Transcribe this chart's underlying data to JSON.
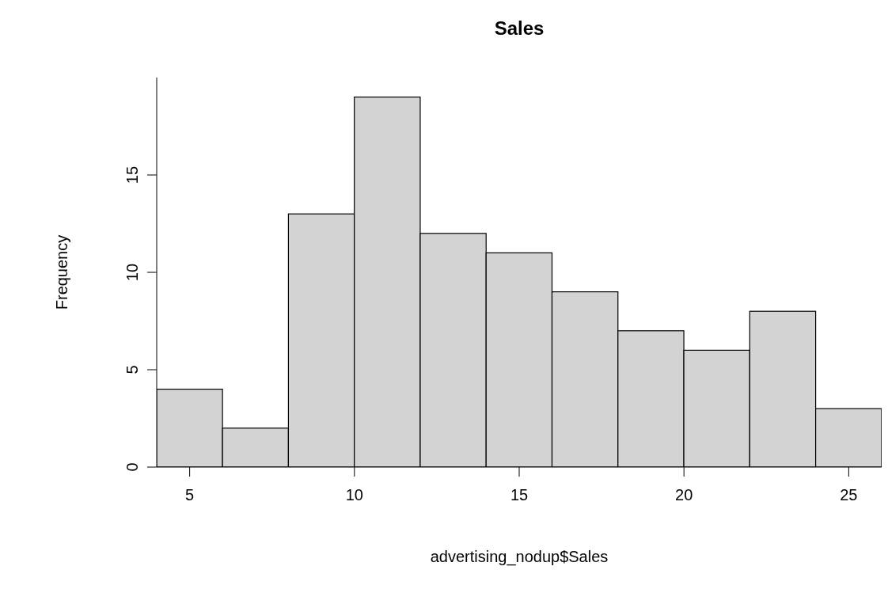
{
  "chart_data": {
    "type": "histogram",
    "title": "Sales",
    "xlabel": "advertising_nodup$Sales",
    "ylabel": "Frequency",
    "bins": [
      4,
      6,
      8,
      10,
      12,
      14,
      16,
      18,
      20,
      22,
      24,
      26
    ],
    "values": [
      4,
      2,
      13,
      19,
      12,
      11,
      9,
      7,
      6,
      8,
      3
    ],
    "color": "#d3d3d3",
    "xlim": [
      4,
      26
    ],
    "xticks": [
      5,
      10,
      15,
      20,
      25
    ],
    "ylim": [
      0,
      20
    ],
    "yticks": [
      0,
      5,
      10,
      15
    ],
    "grid": false
  }
}
